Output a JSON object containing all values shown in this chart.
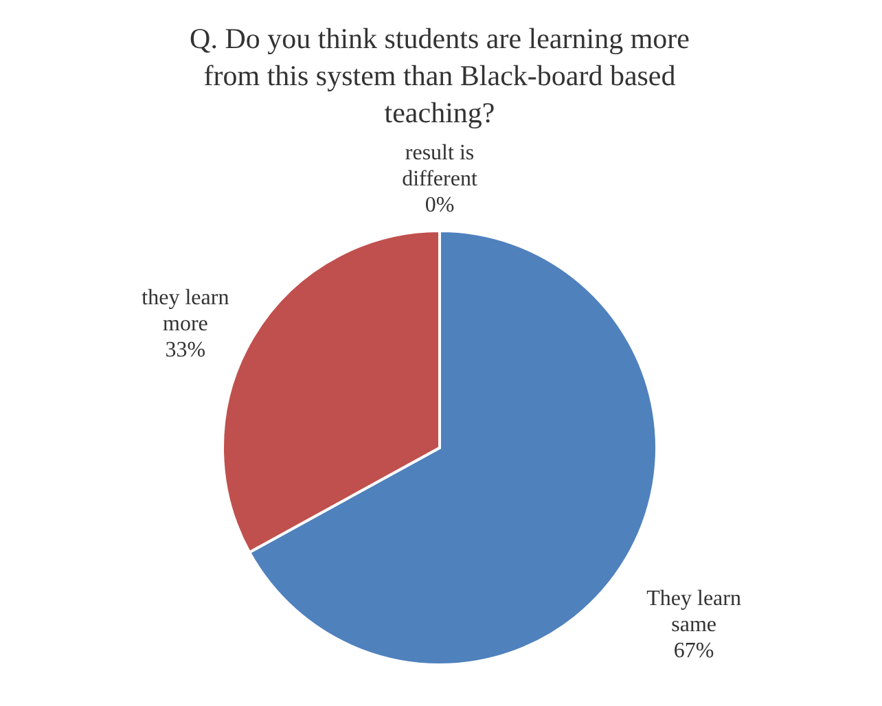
{
  "chart_data": {
    "type": "pie",
    "title": "Q. Do you think students are  learning more from this system than Black-board based teaching?",
    "categories": [
      "They learn same",
      "they learn more",
      "result is different"
    ],
    "values": [
      67,
      33,
      0
    ],
    "colors": [
      "#4f81bd",
      "#c0504d",
      "#9bbb59"
    ],
    "value_labels": [
      "67%",
      "33%",
      "0%"
    ],
    "legend": false
  }
}
